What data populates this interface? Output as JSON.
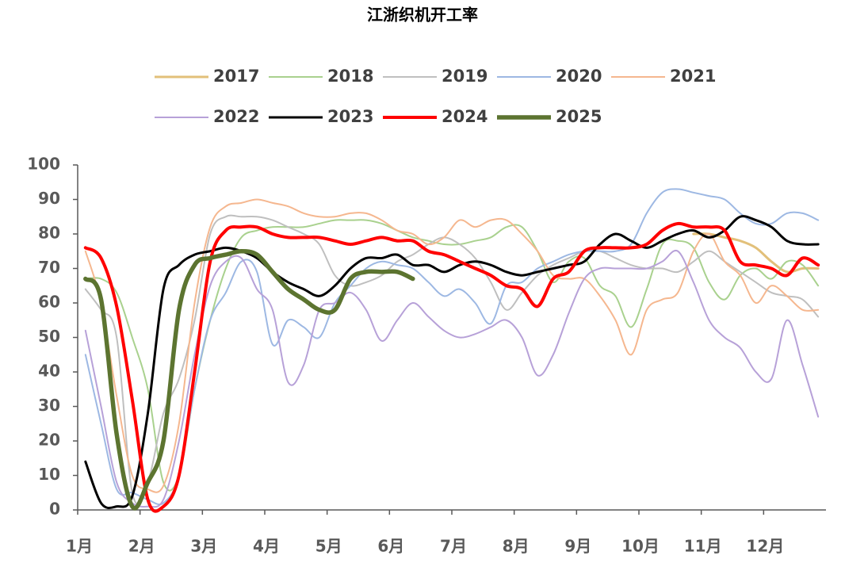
{
  "chart_data": {
    "type": "line",
    "title": "江浙织机开工率",
    "x": [
      1.125,
      1.375,
      1.625,
      1.875,
      2.125,
      2.375,
      2.625,
      2.875,
      3.125,
      3.375,
      3.625,
      3.875,
      4.125,
      4.375,
      4.625,
      4.875,
      5.125,
      5.375,
      5.625,
      5.875,
      6.125,
      6.375,
      6.625,
      6.875,
      7.125,
      7.375,
      7.625,
      7.875,
      8.125,
      8.375,
      8.625,
      8.875,
      9.125,
      9.375,
      9.625,
      9.875,
      10.125,
      10.375,
      10.625,
      10.875,
      11.125,
      11.375,
      11.625,
      11.875,
      12.125,
      12.375,
      12.625,
      12.875
    ],
    "xlim": [
      1,
      13
    ],
    "xticks": [
      {
        "value": 1,
        "label": "1月"
      },
      {
        "value": 2,
        "label": "2月"
      },
      {
        "value": 3,
        "label": "3月"
      },
      {
        "value": 4,
        "label": "4月"
      },
      {
        "value": 5,
        "label": "5月"
      },
      {
        "value": 6,
        "label": "6月"
      },
      {
        "value": 7,
        "label": "7月"
      },
      {
        "value": 8,
        "label": "8月"
      },
      {
        "value": 9,
        "label": "9月"
      },
      {
        "value": 10,
        "label": "10月"
      },
      {
        "value": 11,
        "label": "11月"
      },
      {
        "value": 12,
        "label": "12月"
      }
    ],
    "ylim": [
      0,
      100
    ],
    "yticks": [
      0,
      10,
      20,
      30,
      40,
      50,
      60,
      70,
      80,
      90,
      100
    ],
    "series": [
      {
        "name": "2017",
        "color": "#e2c07a",
        "width": 3,
        "values": [
          null,
          null,
          null,
          null,
          null,
          null,
          null,
          null,
          null,
          null,
          null,
          null,
          null,
          null,
          null,
          null,
          null,
          null,
          null,
          null,
          null,
          null,
          null,
          null,
          null,
          null,
          null,
          null,
          null,
          null,
          null,
          null,
          null,
          null,
          null,
          null,
          null,
          null,
          null,
          80,
          80,
          79,
          78,
          76,
          72,
          69,
          70,
          70
        ]
      },
      {
        "name": "2018",
        "color": "#a9d18e",
        "width": 2,
        "values": [
          67,
          67,
          63,
          50,
          35,
          8,
          10,
          35,
          55,
          70,
          79,
          81,
          82,
          82,
          82,
          83,
          84,
          84,
          84,
          83,
          81,
          79,
          78,
          77,
          77,
          78,
          79,
          82,
          82,
          75,
          66,
          72,
          73,
          65,
          62,
          53,
          64,
          77,
          78,
          76,
          66,
          61,
          68,
          70,
          67,
          72,
          71,
          65
        ]
      },
      {
        "name": "2019",
        "color": "#bfbfbf",
        "width": 2,
        "values": [
          64,
          58,
          50,
          5,
          8,
          28,
          38,
          55,
          80,
          85,
          85,
          85,
          84,
          82,
          80,
          77,
          68,
          65,
          66,
          68,
          72,
          74,
          77,
          79,
          77,
          73,
          66,
          58,
          63,
          68,
          71,
          73,
          75,
          75,
          73,
          71,
          70,
          70,
          69,
          72,
          75,
          72,
          69,
          66,
          63,
          62,
          61,
          56
        ]
      },
      {
        "name": "2020",
        "color": "#9db8e3",
        "width": 2,
        "values": [
          45,
          25,
          6,
          5,
          3,
          2,
          10,
          35,
          55,
          63,
          72,
          69,
          48,
          55,
          53,
          50,
          60,
          65,
          70,
          72,
          71,
          70,
          66,
          62,
          64,
          60,
          54,
          65,
          66,
          70,
          72,
          74,
          75,
          75,
          75,
          77,
          86,
          92,
          93,
          92,
          91,
          90,
          86,
          83,
          83,
          86,
          86,
          84
        ]
      },
      {
        "name": "2021",
        "color": "#f5b78f",
        "width": 2,
        "values": [
          75,
          60,
          33,
          10,
          6,
          7,
          25,
          60,
          82,
          88,
          89,
          90,
          89,
          88,
          86,
          85,
          85,
          86,
          86,
          84,
          81,
          80,
          77,
          79,
          84,
          82,
          84,
          84,
          80,
          75,
          68,
          67,
          67,
          62,
          55,
          45,
          58,
          61,
          63,
          75,
          80,
          72,
          68,
          60,
          65,
          62,
          58,
          58
        ]
      },
      {
        "name": "2022",
        "color": "#b7a1d8",
        "width": 2,
        "values": [
          52,
          30,
          8,
          2,
          1,
          3,
          20,
          45,
          65,
          72,
          73,
          64,
          58,
          37,
          42,
          58,
          60,
          63,
          58,
          49,
          55,
          60,
          56,
          52,
          50,
          51,
          53,
          55,
          50,
          39,
          45,
          57,
          67,
          70,
          70,
          70,
          70,
          72,
          75,
          66,
          55,
          50,
          47,
          40,
          38,
          55,
          42,
          27
        ]
      },
      {
        "name": "2023",
        "color": "#000000",
        "width": 3,
        "values": [
          14,
          2,
          1,
          4,
          28,
          64,
          71,
          74,
          75,
          76,
          75,
          73,
          69,
          66,
          64,
          62,
          65,
          70,
          73,
          73,
          74,
          71,
          71,
          69,
          71,
          72,
          71,
          69,
          68,
          69,
          70,
          71,
          72,
          77,
          80,
          78,
          76,
          78,
          80,
          81,
          79,
          81,
          85,
          84,
          82,
          78,
          77,
          77
        ]
      },
      {
        "name": "2024",
        "color": "#ff0000",
        "width": 4,
        "values": [
          76,
          73,
          59,
          32,
          3,
          1,
          10,
          40,
          72,
          81,
          82,
          82,
          80,
          79,
          79,
          79,
          78,
          77,
          78,
          79,
          78,
          78,
          75,
          74,
          72,
          70,
          68,
          65,
          64,
          59,
          67,
          69,
          75,
          76,
          76,
          76,
          77,
          81,
          83,
          82,
          82,
          81,
          72,
          71,
          70,
          68,
          73,
          71
        ]
      },
      {
        "name": "2025",
        "color": "#5c7430",
        "width": 5.5,
        "values": [
          67,
          61,
          22,
          1,
          8,
          20,
          58,
          71,
          73,
          74,
          75,
          74,
          69,
          64,
          61,
          58,
          58,
          67,
          69,
          69,
          69,
          67,
          null,
          null,
          null,
          null,
          null,
          null,
          null,
          null,
          null,
          null,
          null,
          null,
          null,
          null,
          null,
          null,
          null,
          null,
          null,
          null,
          null,
          null,
          null,
          null,
          null,
          null
        ]
      }
    ]
  }
}
